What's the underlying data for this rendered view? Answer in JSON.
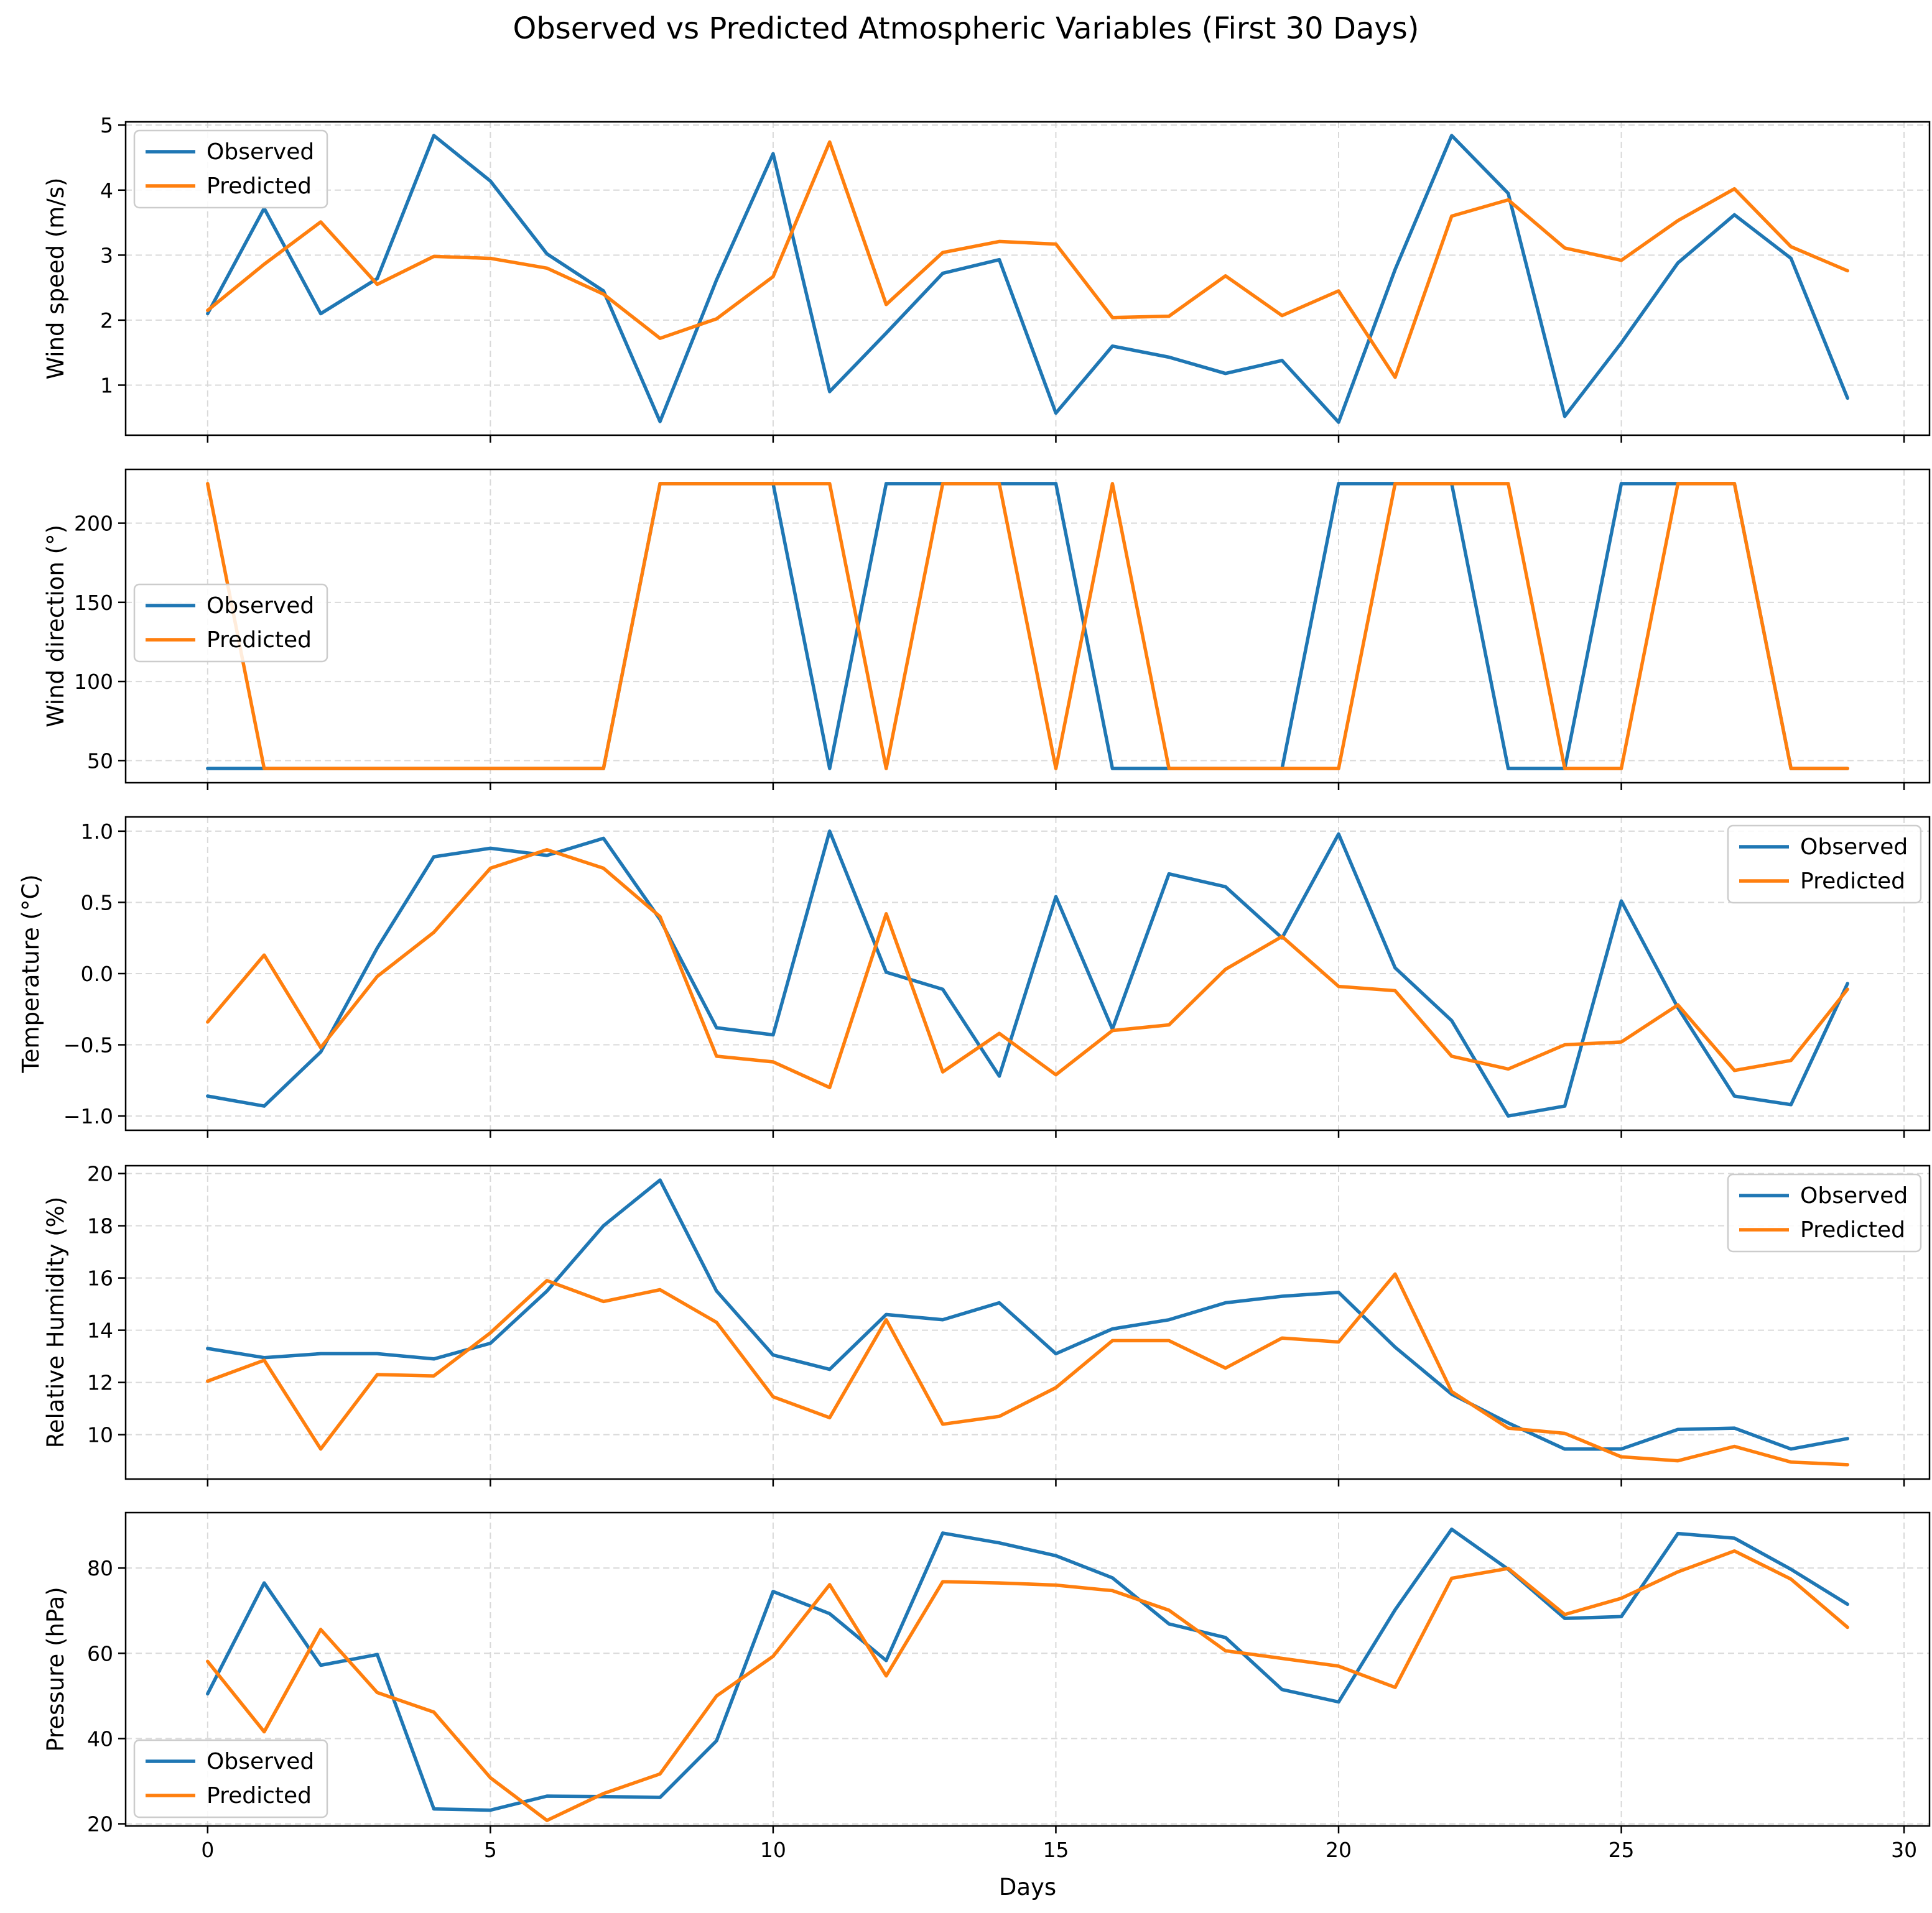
{
  "chart_data": {
    "type": "line",
    "title": "Observed vs Predicted Atmospheric Variables (First 30 Days)",
    "xlabel": "Days",
    "x": [
      0,
      1,
      2,
      3,
      4,
      5,
      6,
      7,
      8,
      9,
      10,
      11,
      12,
      13,
      14,
      15,
      16,
      17,
      18,
      19,
      20,
      21,
      22,
      23,
      24,
      25,
      26,
      27,
      28,
      29
    ],
    "xlim": [
      -1.45,
      30.45
    ],
    "xticks": [
      0,
      5,
      10,
      15,
      20,
      25,
      30
    ],
    "grid": true,
    "series_names": [
      "Observed",
      "Predicted"
    ],
    "series_colors": [
      "#1f77b4",
      "#ff7f0e"
    ],
    "panels": [
      {
        "ylabel": "Wind speed (m/s)",
        "ylim": [
          0.23,
          5.05
        ],
        "yticks": [
          1,
          2,
          3,
          4,
          5
        ],
        "legend": "upper-left",
        "series": [
          {
            "name": "Observed",
            "values": [
              2.1,
              3.72,
              2.1,
              2.64,
              4.84,
              4.14,
              3.02,
              2.45,
              0.44,
              2.62,
              4.56,
              0.9,
              1.8,
              2.72,
              2.93,
              0.57,
              1.6,
              1.43,
              1.18,
              1.38,
              0.43,
              2.78,
              4.84,
              3.95,
              0.52,
              1.65,
              2.88,
              3.62,
              2.95,
              0.8
            ]
          },
          {
            "name": "Predicted",
            "values": [
              2.15,
              2.86,
              3.51,
              2.55,
              2.98,
              2.95,
              2.8,
              2.4,
              1.72,
              2.02,
              2.67,
              4.74,
              2.24,
              3.04,
              3.21,
              3.17,
              2.04,
              2.06,
              2.68,
              2.07,
              2.45,
              1.12,
              3.6,
              3.85,
              3.11,
              2.92,
              3.53,
              4.02,
              3.13,
              2.76
            ]
          }
        ]
      },
      {
        "ylabel": "Wind direction (°)",
        "ylim": [
          36,
          234
        ],
        "yticks": [
          50,
          100,
          150,
          200
        ],
        "legend": "center-left",
        "series": [
          {
            "name": "Observed",
            "values": [
              45,
              45,
              45,
              45,
              45,
              45,
              45,
              45,
              225,
              225,
              225,
              45,
              225,
              225,
              225,
              225,
              45,
              45,
              45,
              45,
              225,
              225,
              225,
              45,
              45,
              225,
              225,
              225,
              45,
              45
            ]
          },
          {
            "name": "Predicted",
            "values": [
              225,
              45,
              45,
              45,
              45,
              45,
              45,
              45,
              225,
              225,
              225,
              225,
              45,
              225,
              225,
              45,
              225,
              45,
              45,
              45,
              45,
              225,
              225,
              225,
              45,
              45,
              225,
              225,
              45,
              45
            ]
          }
        ]
      },
      {
        "ylabel": "Temperature (°C)",
        "ylim": [
          -1.1,
          1.1
        ],
        "yticks": [
          -1.0,
          -0.5,
          0.0,
          0.5,
          1.0
        ],
        "legend": "upper-right",
        "series": [
          {
            "name": "Observed",
            "values": [
              -0.86,
              -0.93,
              -0.55,
              0.18,
              0.82,
              0.88,
              0.83,
              0.95,
              0.38,
              -0.38,
              -0.43,
              1.0,
              0.01,
              -0.11,
              -0.72,
              0.54,
              -0.39,
              0.7,
              0.61,
              0.25,
              0.98,
              0.04,
              -0.33,
              -1.0,
              -0.93,
              0.51,
              -0.24,
              -0.86,
              -0.92,
              -0.07
            ]
          },
          {
            "name": "Predicted",
            "values": [
              -0.34,
              0.13,
              -0.52,
              -0.02,
              0.29,
              0.74,
              0.87,
              0.74,
              0.4,
              -0.58,
              -0.62,
              -0.8,
              0.42,
              -0.69,
              -0.42,
              -0.71,
              -0.4,
              -0.36,
              0.03,
              0.26,
              -0.09,
              -0.12,
              -0.58,
              -0.67,
              -0.5,
              -0.48,
              -0.22,
              -0.68,
              -0.61,
              -0.11
            ]
          }
        ]
      },
      {
        "ylabel": "Relative Humidity (%)",
        "ylim": [
          8.3,
          20.3
        ],
        "yticks": [
          10,
          12,
          14,
          16,
          18,
          20
        ],
        "legend": "upper-right",
        "series": [
          {
            "name": "Observed",
            "values": [
              13.3,
              12.95,
              13.1,
              13.1,
              12.9,
              13.5,
              15.5,
              18.0,
              19.75,
              15.5,
              13.05,
              12.5,
              14.6,
              14.4,
              15.05,
              13.1,
              14.05,
              14.4,
              15.05,
              15.3,
              15.45,
              13.35,
              11.55,
              10.45,
              9.45,
              9.45,
              10.2,
              10.25,
              9.45,
              9.85
            ]
          },
          {
            "name": "Predicted",
            "values": [
              12.05,
              12.85,
              9.45,
              12.3,
              12.25,
              13.9,
              15.9,
              15.1,
              15.55,
              14.3,
              11.45,
              10.65,
              14.4,
              10.4,
              10.7,
              11.8,
              13.6,
              13.6,
              12.55,
              13.7,
              13.55,
              16.15,
              11.65,
              10.25,
              10.05,
              9.15,
              9.0,
              9.55,
              8.95,
              8.85
            ]
          }
        ]
      },
      {
        "ylabel": "Pressure (hPa)",
        "ylim": [
          19.5,
          93
        ],
        "yticks": [
          20,
          40,
          60,
          80
        ],
        "legend": "lower-left",
        "series": [
          {
            "name": "Observed",
            "values": [
              50.5,
              76.5,
              57.2,
              59.7,
              23.5,
              23.2,
              26.5,
              26.4,
              26.2,
              39.5,
              74.5,
              69.3,
              58.3,
              88.2,
              85.9,
              82.9,
              77.7,
              66.9,
              63.7,
              51.5,
              48.6,
              70.2,
              89.1,
              79.7,
              68.2,
              68.6,
              88.1,
              87.0,
              79.7,
              71.5
            ]
          },
          {
            "name": "Predicted",
            "values": [
              58.1,
              41.6,
              65.6,
              50.8,
              46.2,
              30.8,
              20.8,
              27.1,
              31.7,
              50.0,
              59.3,
              76.1,
              54.7,
              76.8,
              76.5,
              76.0,
              74.7,
              70.1,
              60.6,
              58.8,
              57.0,
              52.0,
              77.6,
              79.9,
              69.1,
              72.9,
              79.1,
              84.0,
              77.4,
              66.1
            ]
          }
        ]
      }
    ]
  }
}
